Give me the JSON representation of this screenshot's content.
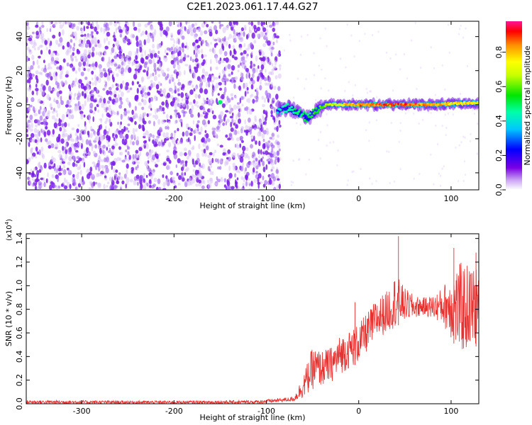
{
  "title": "C2E1.2023.061.17.44.G27",
  "colors": {
    "signal_red": "#e8302e",
    "violet": "#7a1ee6",
    "background": "#ffffff"
  },
  "colorbar": {
    "label": "Normalized spectral amplitude",
    "ticks": [
      "0.0",
      "0.2",
      "0.4",
      "0.6",
      "0.8"
    ],
    "tick_values": [
      0.0,
      0.2,
      0.4,
      0.6,
      0.8
    ],
    "range": [
      0.0,
      0.98
    ]
  },
  "chart_data": [
    {
      "type": "heatmap",
      "name_hint": "spectrogram",
      "xlabel": "Height of straight line (km)",
      "ylabel": "Frequency (Hz)",
      "xlim": [
        -360,
        130
      ],
      "ylim": [
        -50,
        49
      ],
      "x_ticks": [
        -300,
        -200,
        -100,
        0,
        100
      ],
      "x_tick_labels": [
        "-300",
        "-200",
        "-100",
        "0",
        "100"
      ],
      "y_ticks": [
        -40,
        -20,
        0,
        20,
        40
      ],
      "y_tick_labels": [
        "-40",
        "-20",
        "0",
        "20",
        "40"
      ],
      "noise_region": {
        "x_range": [
          -360,
          -85
        ],
        "freq_range": [
          -50,
          49
        ],
        "amplitude": 0.15
      },
      "signal_trace": [
        {
          "x": -150,
          "freq": 1.5,
          "amplitude": 0.5
        },
        {
          "x": -85,
          "freq": -3,
          "amplitude": 0.45
        },
        {
          "x": -75,
          "freq": -2,
          "amplitude": 0.5
        },
        {
          "x": -65,
          "freq": -5,
          "amplitude": 0.55
        },
        {
          "x": -55,
          "freq": -8,
          "amplitude": 0.55
        },
        {
          "x": -45,
          "freq": -3,
          "amplitude": 0.6
        },
        {
          "x": -35,
          "freq": 0,
          "amplitude": 0.7
        },
        {
          "x": -20,
          "freq": 0,
          "amplitude": 0.8
        },
        {
          "x": 0,
          "freq": 0,
          "amplitude": 0.95
        },
        {
          "x": 20,
          "freq": 0,
          "amplitude": 0.95
        },
        {
          "x": 40,
          "freq": 0,
          "amplitude": 0.95
        },
        {
          "x": 60,
          "freq": 0,
          "amplitude": 0.95
        },
        {
          "x": 80,
          "freq": 0,
          "amplitude": 0.9
        },
        {
          "x": 100,
          "freq": 0.5,
          "amplitude": 0.85
        },
        {
          "x": 120,
          "freq": 1,
          "amplitude": 0.85
        },
        {
          "x": 130,
          "freq": 1,
          "amplitude": 0.8
        }
      ]
    },
    {
      "type": "line",
      "name_hint": "snr",
      "xlabel": "Height of straight line (km)",
      "ylabel": "SNR (10 * v/v)",
      "y_multiplier": "(x10",
      "y_multiplier_exp": "4",
      "y_multiplier_close": ")",
      "xlim": [
        -360,
        130
      ],
      "ylim": [
        0,
        1.44
      ],
      "x_ticks": [
        -300,
        -200,
        -100,
        0,
        100
      ],
      "x_tick_labels": [
        "-300",
        "-200",
        "-100",
        "0",
        "100"
      ],
      "y_ticks": [
        0.0,
        0.2,
        0.4,
        0.6,
        0.8,
        1.0,
        1.2,
        1.4
      ],
      "y_tick_labels": [
        "0.0",
        "0.2",
        "0.4",
        "0.6",
        "0.8",
        "1.0",
        "1.2",
        "1.4"
      ],
      "series_color": "#e8302e",
      "envelope": [
        {
          "x": -360,
          "low": 0.0,
          "high": 0.03
        },
        {
          "x": -200,
          "low": 0.0,
          "high": 0.025
        },
        {
          "x": -110,
          "low": 0.0,
          "high": 0.03
        },
        {
          "x": -70,
          "low": 0.02,
          "high": 0.06
        },
        {
          "x": -60,
          "low": 0.05,
          "high": 0.25
        },
        {
          "x": -50,
          "low": 0.12,
          "high": 0.48
        },
        {
          "x": -40,
          "low": 0.15,
          "high": 0.45
        },
        {
          "x": -30,
          "low": 0.18,
          "high": 0.48
        },
        {
          "x": -20,
          "low": 0.25,
          "high": 0.58
        },
        {
          "x": -10,
          "low": 0.3,
          "high": 0.62
        },
        {
          "x": 0,
          "low": 0.35,
          "high": 0.68
        },
        {
          "x": 10,
          "low": 0.45,
          "high": 0.78
        },
        {
          "x": 20,
          "low": 0.55,
          "high": 0.9
        },
        {
          "x": 30,
          "low": 0.6,
          "high": 0.95
        },
        {
          "x": 40,
          "low": 0.65,
          "high": 1.1
        },
        {
          "x": 50,
          "low": 0.7,
          "high": 0.98
        },
        {
          "x": 60,
          "low": 0.72,
          "high": 0.92
        },
        {
          "x": 70,
          "low": 0.75,
          "high": 0.9
        },
        {
          "x": 80,
          "low": 0.72,
          "high": 0.92
        },
        {
          "x": 90,
          "low": 0.68,
          "high": 0.98
        },
        {
          "x": 100,
          "low": 0.55,
          "high": 1.12
        },
        {
          "x": 110,
          "low": 0.42,
          "high": 1.2
        },
        {
          "x": 120,
          "low": 0.45,
          "high": 1.18
        },
        {
          "x": 130,
          "low": 0.5,
          "high": 1.15
        }
      ],
      "spikes": [
        {
          "x": 43,
          "value": 1.42
        },
        {
          "x": 103,
          "value": 1.32
        },
        {
          "x": 127,
          "value": 1.28
        },
        {
          "x": -4,
          "value": 0.86
        }
      ]
    }
  ]
}
